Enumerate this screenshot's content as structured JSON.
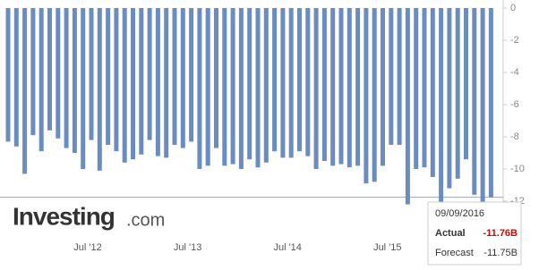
{
  "chart_data": {
    "type": "bar",
    "categories": [
      null,
      null,
      null,
      null,
      null,
      null,
      null,
      null,
      null,
      null,
      "Jul '12",
      null,
      null,
      null,
      null,
      null,
      null,
      null,
      null,
      null,
      null,
      null,
      "Jul '13",
      null,
      null,
      null,
      null,
      null,
      null,
      null,
      null,
      null,
      null,
      null,
      "Jul '14",
      null,
      null,
      null,
      null,
      null,
      null,
      null,
      null,
      null,
      null,
      null,
      "Jul '15",
      null,
      null,
      null,
      null,
      null,
      null,
      null,
      null,
      null,
      null,
      null,
      null
    ],
    "values": [
      -8.3,
      -8.6,
      -10.3,
      -7.9,
      -8.9,
      -7.6,
      -8.1,
      -8.7,
      -9.0,
      -10.0,
      -8.2,
      -10.1,
      -8.5,
      -8.9,
      -9.6,
      -9.4,
      -9.1,
      -8.2,
      -9.2,
      -9.3,
      -8.5,
      -8.7,
      -8.3,
      -10.0,
      -9.8,
      -8.7,
      -9.8,
      -9.7,
      -10.0,
      -9.4,
      -9.9,
      -9.6,
      -8.9,
      -9.3,
      -9.3,
      -8.9,
      -9.2,
      -10.0,
      -9.5,
      -9.8,
      -9.7,
      -9.9,
      -9.8,
      -10.9,
      -10.8,
      -9.8,
      -8.5,
      -8.5,
      -12.2,
      -10.0,
      -9.9,
      -10.5,
      -12.2,
      -11.2,
      -10.6,
      -9.4,
      -11.6,
      -12.2,
      -11.76
    ],
    "color": "#6b8cc0",
    "ylim": [
      0,
      -12
    ],
    "yticks": [
      0,
      -2,
      -4,
      -6,
      -8,
      -10,
      -12
    ],
    "reference_line": -11.76,
    "brand": "Investing",
    "brand_suffix": ".com",
    "tooltip": {
      "date": "09/09/2016",
      "actual_label": "Actual",
      "actual": "-11.76B",
      "forecast_label": "Forecast",
      "forecast": "-11.75B"
    }
  }
}
